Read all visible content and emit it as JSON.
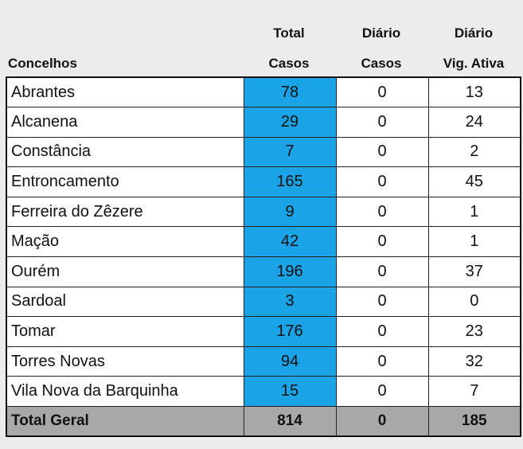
{
  "header": {
    "concelhos": "Concelhos",
    "total_line1": "Total",
    "total_line2": "Casos",
    "diario_casos_line1": "Diário",
    "diario_casos_line2": "Casos",
    "diario_vig_line1": "Diário",
    "diario_vig_line2": "Vig. Ativa"
  },
  "rows": [
    {
      "name": "Abrantes",
      "total": "78",
      "diario": "0",
      "vig": "13"
    },
    {
      "name": "Alcanena",
      "total": "29",
      "diario": "0",
      "vig": "24"
    },
    {
      "name": "Constância",
      "total": "7",
      "diario": "0",
      "vig": "2"
    },
    {
      "name": "Entroncamento",
      "total": "165",
      "diario": "0",
      "vig": "45"
    },
    {
      "name": "Ferreira do Zêzere",
      "total": "9",
      "diario": "0",
      "vig": "1"
    },
    {
      "name": "Mação",
      "total": "42",
      "diario": "0",
      "vig": "1"
    },
    {
      "name": "Ourém",
      "total": "196",
      "diario": "0",
      "vig": "37"
    },
    {
      "name": "Sardoal",
      "total": "3",
      "diario": "0",
      "vig": "0"
    },
    {
      "name": "Tomar",
      "total": "176",
      "diario": "0",
      "vig": "23"
    },
    {
      "name": "Torres Novas",
      "total": "94",
      "diario": "0",
      "vig": "32"
    },
    {
      "name": "Vila Nova da Barquinha",
      "total": "15",
      "diario": "0",
      "vig": "7"
    }
  ],
  "footer": {
    "name": "Total Geral",
    "total": "814",
    "diario": "0",
    "vig": "185"
  },
  "colors": {
    "total_cell": "#1aa3e6",
    "footer": "#a8a8a8",
    "background": "#ececec"
  }
}
